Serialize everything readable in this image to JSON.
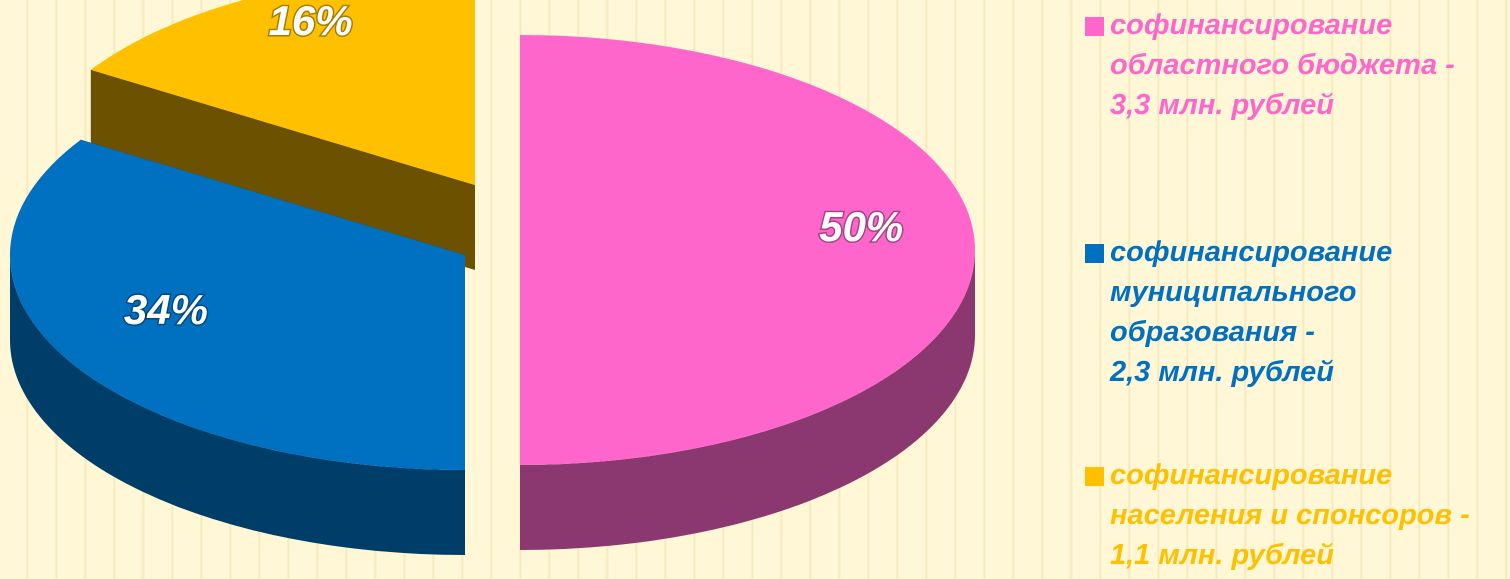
{
  "chart_data": {
    "type": "pie",
    "series": [
      {
        "name": "софинансирование\nобластного бюджета -\n3,3 млн. рублей",
        "color": "#ff66cc",
        "values": [
          50
        ],
        "value_labels": [
          "50%"
        ]
      },
      {
        "name": "софинансирование\nмуниципального\nобразования -\n2,3 млн. рублей",
        "color": "#0070c0",
        "values": [
          34
        ],
        "value_labels": [
          "34%"
        ]
      },
      {
        "name": "софинансирование\nнаселения и спонсоров -\n1,1 млн. рублей",
        "color": "#ffc000",
        "values": [
          16
        ],
        "value_labels": [
          "16%"
        ]
      }
    ],
    "legend": "right"
  }
}
